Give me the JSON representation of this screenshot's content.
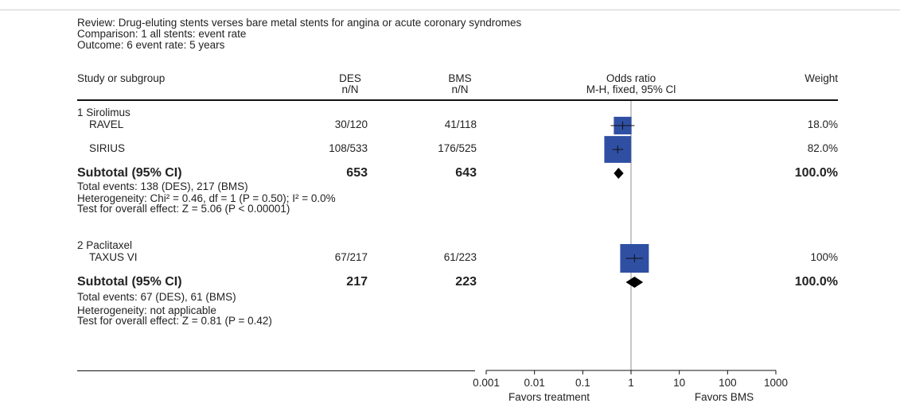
{
  "header": {
    "review": "Review: Drug-eluting stents verses bare metal stents for angina or acute coronary syndromes",
    "comparison": "Comparison: 1 all stents: event rate",
    "outcome": "Outcome: 6 event rate: 5 years"
  },
  "columns": {
    "study": "Study or subgroup",
    "des": "DES",
    "des_sub": "n/N",
    "bms": "BMS",
    "bms_sub": "n/N",
    "or": "Odds ratio",
    "or_sub": "M-H, fixed, 95% Cl",
    "weight": "Weight"
  },
  "subgroups": [
    {
      "name": "1 Sirolimus",
      "studies": [
        {
          "name": "RAVEL",
          "des": "30/120",
          "bms": "41/118",
          "weight": "18.0%"
        },
        {
          "name": "SIRIUS",
          "des": "108/533",
          "bms": "176/525",
          "weight": "82.0%"
        }
      ],
      "subtotal": {
        "label": "Subtotal (95% CI)",
        "des": "653",
        "bms": "643",
        "weight": "100.0%"
      },
      "notes": [
        "Total events: 138 (DES), 217 (BMS)",
        "Heterogeneity: Chi² = 0.46, df = 1 (P = 0.50); I² = 0.0%",
        "Test for overall effect: Z = 5.06 (P < 0.00001)"
      ]
    },
    {
      "name": "2 Paclitaxel",
      "studies": [
        {
          "name": "TAXUS VI",
          "des": "67/217",
          "bms": "61/223",
          "weight": "100%"
        }
      ],
      "subtotal": {
        "label": "Subtotal (95% CI)",
        "des": "217",
        "bms": "223",
        "weight": "100.0%"
      },
      "notes": [
        "Total events: 67 (DES), 61 (BMS)",
        "Heterogeneity: not applicable",
        "Test for overall effect: Z = 0.81 (P = 0.42)"
      ]
    }
  ],
  "axis": {
    "ticks": [
      "0.001",
      "0.01",
      "0.1",
      "1",
      "10",
      "100",
      "1000"
    ],
    "favors_left": "Favors treatment",
    "favors_right": "Favors BMS"
  },
  "chart_data": {
    "type": "forest",
    "x_scale": "log",
    "xlim": [
      0.001,
      1000
    ],
    "reference_line": 1,
    "marker_color": "#2f4fa3",
    "studies": [
      {
        "name": "RAVEL",
        "or": 0.67,
        "ci": [
          0.38,
          1.18
        ],
        "weight": 18.0
      },
      {
        "name": "SIRIUS",
        "or": 0.53,
        "ci": [
          0.41,
          0.69
        ],
        "weight": 82.0
      },
      {
        "name": "TAXUS VI",
        "or": 1.18,
        "ci": [
          0.78,
          1.78
        ],
        "weight": 100
      }
    ],
    "subtotals": [
      {
        "name": "Sirolimus subtotal",
        "or": 0.55,
        "ci": [
          0.44,
          0.7
        ]
      },
      {
        "name": "Paclitaxel subtotal",
        "or": 1.18,
        "ci": [
          0.78,
          1.78
        ]
      }
    ]
  }
}
